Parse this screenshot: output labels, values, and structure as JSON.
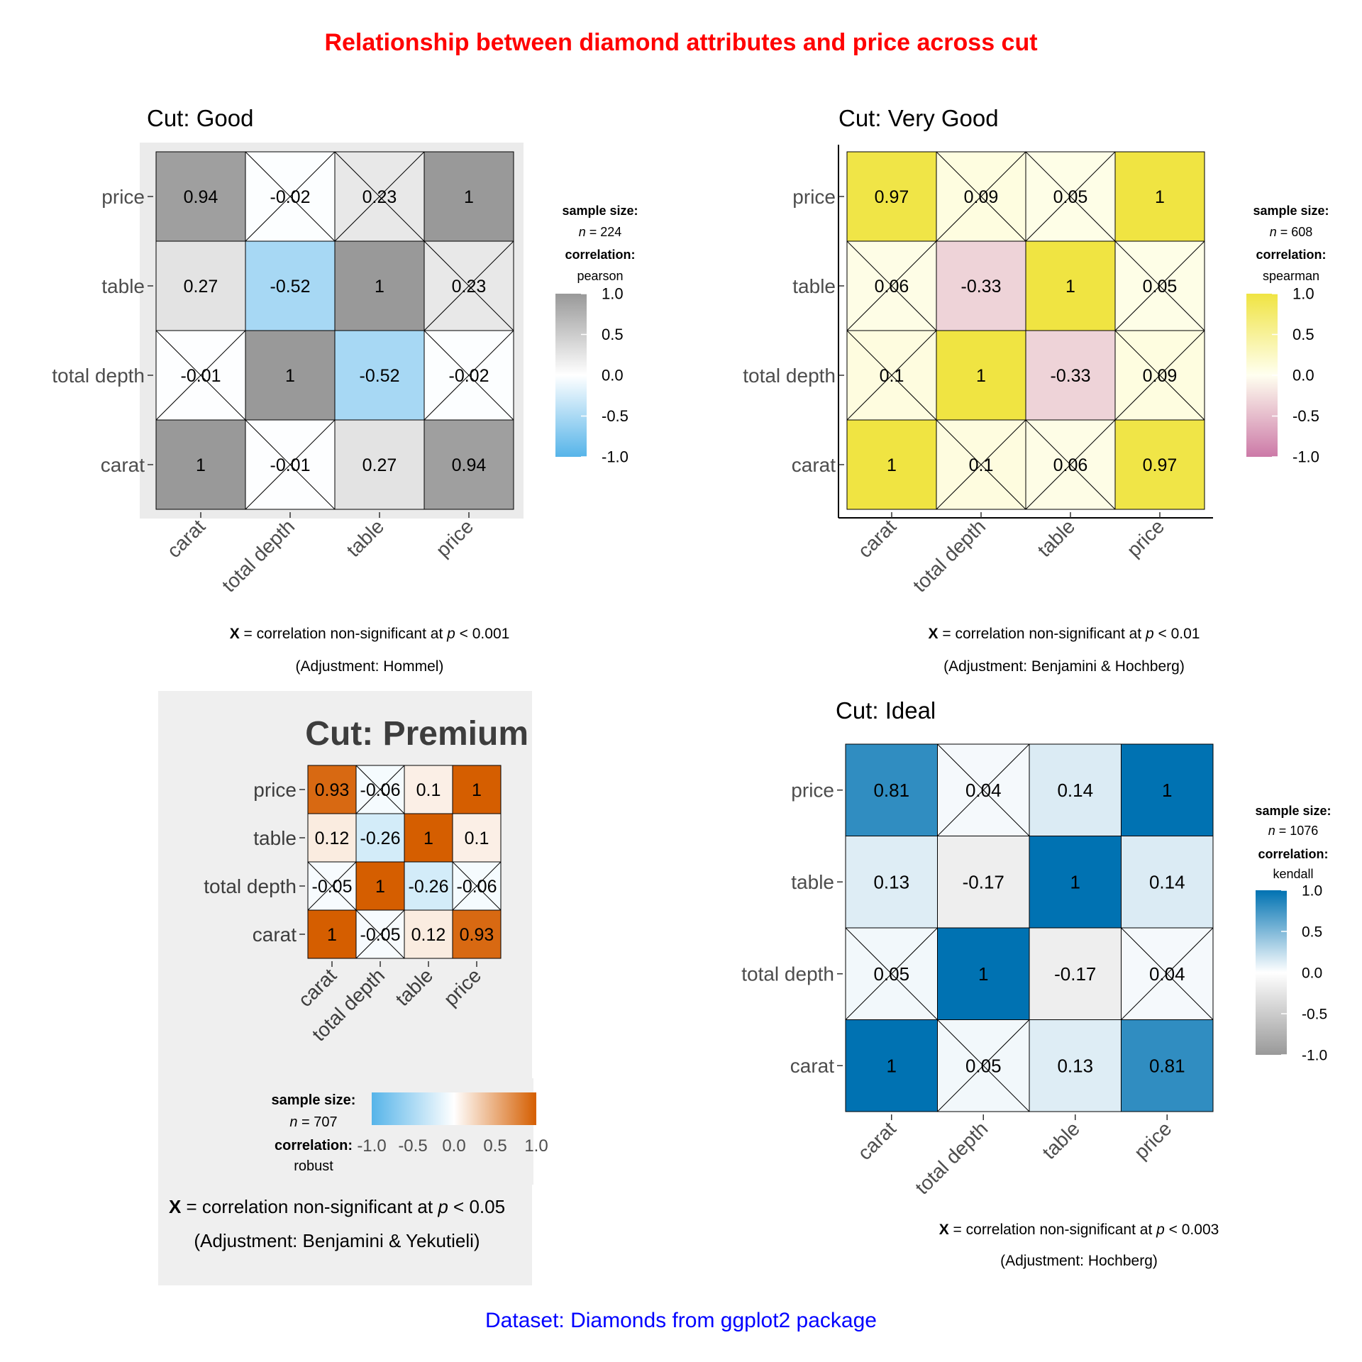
{
  "title": "Relationship between diamond attributes and price across cut",
  "caption": "Dataset: Diamonds from ggplot2 package",
  "colors": {
    "title": "#ff0000",
    "caption": "#0000ff"
  },
  "chart_data": [
    {
      "type": "heatmap",
      "title": "Cut: Good",
      "variables": [
        "carat",
        "total depth",
        "table",
        "price"
      ],
      "matrix": [
        [
          1,
          -0.01,
          0.27,
          0.94
        ],
        [
          -0.01,
          1,
          -0.52,
          -0.02
        ],
        [
          0.27,
          -0.52,
          1,
          0.23
        ],
        [
          0.94,
          -0.02,
          0.23,
          1
        ]
      ],
      "matrix_labels": [
        [
          "1",
          "-0.01",
          "0.27",
          "0.94"
        ],
        [
          "-0.01",
          "1",
          "-0.52",
          "-0.02"
        ],
        [
          "0.27",
          "-0.52",
          "1",
          "0.23"
        ],
        [
          "0.94",
          "-0.02",
          "0.23",
          "1"
        ]
      ],
      "nonsignificant": [
        [
          false,
          true,
          false,
          false
        ],
        [
          true,
          false,
          false,
          true
        ],
        [
          false,
          false,
          false,
          true
        ],
        [
          false,
          true,
          true,
          false
        ]
      ],
      "legend": {
        "sample_size_label": "sample size:",
        "n_label": "n",
        "n_value": "224",
        "correlation_label": "correlation:",
        "correlation_value": "pearson",
        "ticks": [
          "1.0",
          "0.5",
          "0.0",
          "-0.5",
          "-1.0"
        ],
        "position": "right"
      },
      "colors": {
        "low": "#56B4E9",
        "mid": "#ffffff",
        "high": "#999999"
      },
      "footnote": {
        "x_label": "X",
        "text": "= correlation non-significant at",
        "p_label": "p",
        "threshold": "< 0.001",
        "adjustment": "(Adjustment: Hommel)"
      }
    },
    {
      "type": "heatmap",
      "title": "Cut: Very Good",
      "variables": [
        "carat",
        "total depth",
        "table",
        "price"
      ],
      "matrix": [
        [
          1,
          0.1,
          0.06,
          0.97
        ],
        [
          0.1,
          1,
          -0.33,
          0.09
        ],
        [
          0.06,
          -0.33,
          1,
          0.05
        ],
        [
          0.97,
          0.09,
          0.05,
          1
        ]
      ],
      "matrix_labels": [
        [
          "1",
          "0.1",
          "0.06",
          "0.97"
        ],
        [
          "0.1",
          "1",
          "-0.33",
          "0.09"
        ],
        [
          "0.06",
          "-0.33",
          "1",
          "0.05"
        ],
        [
          "0.97",
          "0.09",
          "0.05",
          "1"
        ]
      ],
      "nonsignificant": [
        [
          false,
          true,
          true,
          false
        ],
        [
          true,
          false,
          false,
          true
        ],
        [
          true,
          false,
          false,
          true
        ],
        [
          false,
          true,
          true,
          false
        ]
      ],
      "legend": {
        "sample_size_label": "sample size:",
        "n_label": "n",
        "n_value": "608",
        "correlation_label": "correlation:",
        "correlation_value": "spearman",
        "ticks": [
          "1.0",
          "0.5",
          "0.0",
          "-0.5",
          "-1.0"
        ],
        "position": "right"
      },
      "colors": {
        "low": "#CC79A7",
        "mid": "#FFFFF0",
        "high": "#F0E442"
      },
      "footnote": {
        "x_label": "X",
        "text": "= correlation non-significant at",
        "p_label": "p",
        "threshold": "< 0.01",
        "adjustment": "(Adjustment: Benjamini & Hochberg)"
      }
    },
    {
      "type": "heatmap",
      "title": "Cut: Premium",
      "variables": [
        "carat",
        "total depth",
        "table",
        "price"
      ],
      "matrix": [
        [
          1,
          -0.05,
          0.12,
          0.93
        ],
        [
          -0.05,
          1,
          -0.26,
          -0.06
        ],
        [
          0.12,
          -0.26,
          1,
          0.1
        ],
        [
          0.93,
          -0.06,
          0.1,
          1
        ]
      ],
      "matrix_labels": [
        [
          "1",
          "-0.05",
          "0.12",
          "0.93"
        ],
        [
          "-0.05",
          "1",
          "-0.26",
          "-0.06"
        ],
        [
          "0.12",
          "-0.26",
          "1",
          "0.1"
        ],
        [
          "0.93",
          "-0.06",
          "0.1",
          "1"
        ]
      ],
      "nonsignificant": [
        [
          false,
          true,
          false,
          false
        ],
        [
          true,
          false,
          false,
          true
        ],
        [
          false,
          false,
          false,
          false
        ],
        [
          false,
          true,
          false,
          false
        ]
      ],
      "legend": {
        "sample_size_label": "sample size:",
        "n_label": "n",
        "n_value": "707",
        "correlation_label": "correlation:",
        "correlation_value": "robust",
        "ticks": [
          "-1.0",
          "-0.5",
          "0.0",
          "0.5",
          "1.0"
        ],
        "position": "bottom"
      },
      "colors": {
        "low": "#56B4E9",
        "mid": "#ffffff",
        "high": "#D55E00"
      },
      "footnote": {
        "x_label": "X",
        "text": "= correlation non-significant at",
        "p_label": "p",
        "threshold": "< 0.05",
        "adjustment": "(Adjustment: Benjamini & Yekutieli)"
      }
    },
    {
      "type": "heatmap",
      "title": "Cut: Ideal",
      "variables": [
        "carat",
        "total depth",
        "table",
        "price"
      ],
      "matrix": [
        [
          1,
          0.05,
          0.13,
          0.81
        ],
        [
          0.05,
          1,
          -0.17,
          0.04
        ],
        [
          0.13,
          -0.17,
          1,
          0.14
        ],
        [
          0.81,
          0.04,
          0.14,
          1
        ]
      ],
      "matrix_labels": [
        [
          "1",
          "0.05",
          "0.13",
          "0.81"
        ],
        [
          "0.05",
          "1",
          "-0.17",
          "0.04"
        ],
        [
          "0.13",
          "-0.17",
          "1",
          "0.14"
        ],
        [
          "0.81",
          "0.04",
          "0.14",
          "1"
        ]
      ],
      "nonsignificant": [
        [
          false,
          true,
          false,
          false
        ],
        [
          true,
          false,
          false,
          true
        ],
        [
          false,
          false,
          false,
          false
        ],
        [
          false,
          true,
          false,
          false
        ]
      ],
      "legend": {
        "sample_size_label": "sample size:",
        "n_label": "n",
        "n_value": "1076",
        "correlation_label": "correlation:",
        "correlation_value": "kendall",
        "ticks": [
          "1.0",
          "0.5",
          "0.0",
          "-0.5",
          "-1.0"
        ],
        "position": "right"
      },
      "colors": {
        "low": "#999999",
        "mid": "#ffffff",
        "high": "#0072B2"
      },
      "footnote": {
        "x_label": "X",
        "text": "= correlation non-significant at",
        "p_label": "p",
        "threshold": "< 0.003",
        "adjustment": "(Adjustment: Hochberg)"
      }
    }
  ]
}
